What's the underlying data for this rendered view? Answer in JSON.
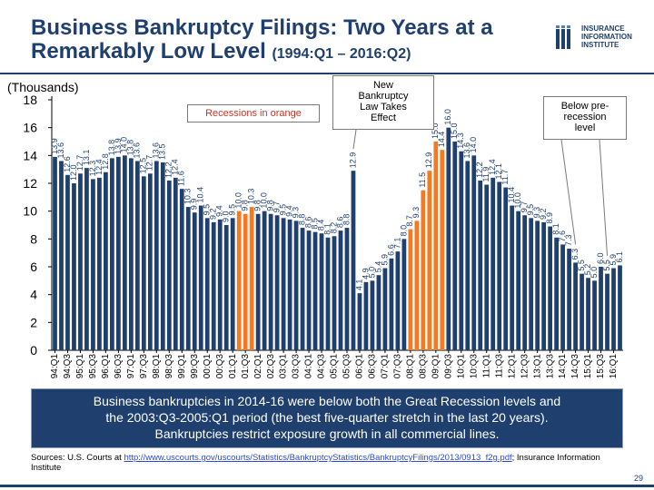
{
  "title": {
    "main": "Business Bankruptcy Filings: Two Years at a Remarkably Low Level",
    "period": "(1994:Q1 – 2016:Q2)"
  },
  "logo": {
    "line1": "INSURANCE",
    "line2": "INFORMATION",
    "line3": "INSTITUTE"
  },
  "units_label": "(Thousands)",
  "annotations": {
    "recessions": "Recessions in orange",
    "new_law_1": "New",
    "new_law_2": "Bankruptcy",
    "new_law_3": "Law Takes",
    "new_law_4": "Effect",
    "below_1": "Below pre-",
    "below_2": "recession",
    "below_3": "level"
  },
  "summary": {
    "line1": "Business bankruptcies in 2014-16 were below both the Great Recession levels and",
    "line2": "the 2003:Q3-2005:Q1 period (the best five-quarter stretch in the last 20 years).",
    "line3": "Bankruptcies restrict exposure growth in all commercial lines."
  },
  "sources": {
    "prefix": "Sources: U.S. Courts at ",
    "link": "http://www.uscourts.gov/uscourts/Statistics/BankruptcyStatistics/BankruptcyFilings/2013/0913_f2g.pdf",
    "suffix": "; Insurance Information Institute"
  },
  "page_number": "29",
  "colors": {
    "bar": "#1f3f6e",
    "recession_bar": "#f47920",
    "navy": "#1f3f6e",
    "annotation_text": "#ffffff"
  },
  "chart_data": {
    "type": "bar",
    "ylabel": "(Thousands)",
    "ylim": [
      0,
      18
    ],
    "yticks": [
      0,
      2,
      4,
      6,
      8,
      10,
      12,
      14,
      16,
      18
    ],
    "grid": false,
    "categories": [
      "94:Q1",
      "94:Q2",
      "94:Q3",
      "94:Q4",
      "95:Q1",
      "95:Q2",
      "95:Q3",
      "95:Q4",
      "96:Q1",
      "96:Q2",
      "96:Q3",
      "96:Q4",
      "97:Q1",
      "97:Q2",
      "97:Q3",
      "97:Q4",
      "98:Q1",
      "98:Q2",
      "98:Q3",
      "98:Q4",
      "99:Q1",
      "99:Q2",
      "99:Q3",
      "99:Q4",
      "00:Q1",
      "00:Q2",
      "00:Q3",
      "00:Q4",
      "01:Q1",
      "01:Q2",
      "01:Q3",
      "01:Q4",
      "02:Q1",
      "02:Q2",
      "02:Q3",
      "02:Q4",
      "03:Q1",
      "03:Q2",
      "03:Q3",
      "03:Q4",
      "04:Q1",
      "04:Q2",
      "04:Q3",
      "04:Q4",
      "05:Q1",
      "05:Q2",
      "05:Q3",
      "05:Q4",
      "06:Q1",
      "06:Q2",
      "06:Q3",
      "06:Q4",
      "07:Q1",
      "07:Q2",
      "07:Q3",
      "07:Q4",
      "08:Q1",
      "08:Q2",
      "08:Q3",
      "08:Q4",
      "09:Q1",
      "09:Q2",
      "09:Q3",
      "09:Q4",
      "10:Q1",
      "10:Q2",
      "10:Q3",
      "10:Q4",
      "11:Q1",
      "11:Q2",
      "11:Q3",
      "11:Q4",
      "12:Q1",
      "12:Q2",
      "12:Q3",
      "12:Q4",
      "13:Q1",
      "13:Q2",
      "13:Q3",
      "13:Q4",
      "14:Q1",
      "14:Q2",
      "14:Q3",
      "14:Q4",
      "15:Q1",
      "15:Q2",
      "15:Q3",
      "15:Q4",
      "16:Q1",
      "16:Q2"
    ],
    "tick_labels": [
      "94:Q1",
      "94:Q3",
      "95:Q1",
      "95:Q3",
      "96:Q1",
      "96:Q3",
      "97:Q1",
      "97:Q3",
      "98:Q1",
      "98:Q3",
      "99:Q1",
      "99:Q3",
      "00:Q1",
      "00:Q3",
      "01:Q1",
      "01:Q3",
      "02:Q1",
      "02:Q3",
      "03:Q1",
      "03:Q3",
      "04:Q1",
      "04:Q3",
      "05:Q1",
      "05:Q3",
      "06:Q1",
      "06:Q3",
      "07:Q1",
      "07:Q3",
      "08:Q1",
      "08:Q3",
      "09:Q1",
      "09:Q3",
      "10:Q1",
      "10:Q3",
      "11:Q1",
      "11:Q3",
      "12:Q1",
      "12:Q3",
      "13:Q1",
      "13:Q3",
      "14:Q1",
      "14:Q3",
      "15:Q1",
      "15:Q3",
      "16:Q1"
    ],
    "values": [
      13.9,
      13.6,
      12.6,
      12.0,
      12.7,
      13.1,
      12.3,
      12.4,
      12.8,
      13.8,
      13.9,
      14.0,
      13.8,
      13.6,
      12.5,
      12.7,
      13.6,
      13.5,
      12.2,
      12.4,
      11.6,
      10.3,
      9.9,
      10.4,
      9.5,
      9.2,
      9.4,
      9.0,
      9.5,
      10.0,
      9.8,
      10.3,
      9.8,
      10.0,
      9.8,
      9.7,
      9.5,
      9.4,
      9.3,
      8.8,
      8.6,
      8.5,
      8.4,
      8.1,
      8.2,
      8.6,
      8.8,
      12.9,
      4.1,
      4.9,
      5.0,
      5.4,
      5.9,
      6.6,
      7.1,
      8.0,
      8.7,
      9.3,
      11.5,
      12.9,
      15.0,
      14.4,
      16.0,
      15.0,
      14.3,
      13.6,
      14.0,
      12.2,
      11.9,
      12.4,
      12.1,
      11.7,
      10.4,
      10.0,
      9.7,
      9.5,
      9.3,
      9.2,
      8.9,
      8.1,
      7.6,
      7.3,
      6.3,
      5.5,
      5.2,
      5.0,
      6.0,
      5.5,
      5.9,
      6.1
    ],
    "recession_indices": [
      29,
      30,
      31,
      56,
      57,
      58,
      59,
      60,
      61
    ]
  }
}
